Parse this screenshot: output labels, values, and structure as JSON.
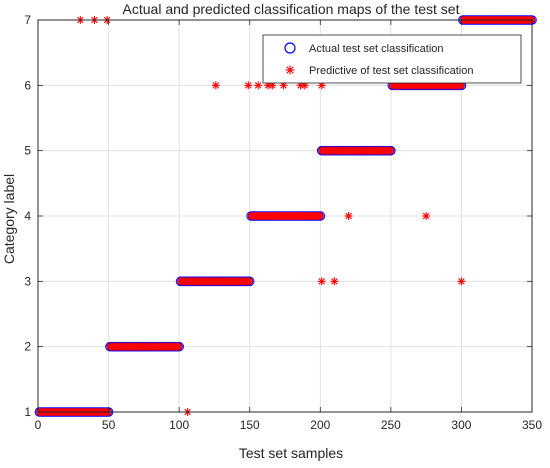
{
  "chart_data": {
    "type": "scatter",
    "title": "Actual and predicted classification maps of the test set",
    "xlabel": "Test set samples",
    "ylabel": "Category label",
    "xlim": [
      0,
      350
    ],
    "ylim": [
      1,
      7
    ],
    "xticks": [
      0,
      50,
      100,
      150,
      200,
      250,
      300,
      350
    ],
    "yticks": [
      1,
      2,
      3,
      4,
      5,
      6,
      7
    ],
    "grid": true,
    "legend_position": "top-right",
    "series": [
      {
        "name": "Actual test set classification",
        "marker": "circle",
        "color": "#0000ff",
        "segments": [
          {
            "x_start": 1,
            "x_end": 50,
            "y": 1
          },
          {
            "x_start": 51,
            "x_end": 100,
            "y": 2
          },
          {
            "x_start": 101,
            "x_end": 150,
            "y": 3
          },
          {
            "x_start": 151,
            "x_end": 200,
            "y": 4
          },
          {
            "x_start": 201,
            "x_end": 250,
            "y": 5
          },
          {
            "x_start": 251,
            "x_end": 300,
            "y": 6
          },
          {
            "x_start": 301,
            "x_end": 350,
            "y": 7
          }
        ]
      },
      {
        "name": "Predictive of test set classification",
        "marker": "asterisk",
        "color": "#ff0000",
        "segments": [
          {
            "x_start": 1,
            "x_end": 50,
            "y": 1
          },
          {
            "x_start": 51,
            "x_end": 100,
            "y": 2
          },
          {
            "x_start": 101,
            "x_end": 150,
            "y": 3
          },
          {
            "x_start": 151,
            "x_end": 200,
            "y": 4
          },
          {
            "x_start": 201,
            "x_end": 250,
            "y": 5
          },
          {
            "x_start": 251,
            "x_end": 300,
            "y": 6
          },
          {
            "x_start": 301,
            "x_end": 350,
            "y": 7
          }
        ],
        "outliers": [
          {
            "x": 30,
            "y": 7
          },
          {
            "x": 40,
            "y": 7
          },
          {
            "x": 49,
            "y": 7
          },
          {
            "x": 106,
            "y": 1
          },
          {
            "x": 126,
            "y": 6
          },
          {
            "x": 149,
            "y": 6
          },
          {
            "x": 156,
            "y": 6
          },
          {
            "x": 163,
            "y": 6
          },
          {
            "x": 166,
            "y": 6
          },
          {
            "x": 174,
            "y": 6
          },
          {
            "x": 186,
            "y": 6
          },
          {
            "x": 189,
            "y": 6
          },
          {
            "x": 201,
            "y": 6
          },
          {
            "x": 201,
            "y": 3
          },
          {
            "x": 210,
            "y": 3
          },
          {
            "x": 220,
            "y": 4
          },
          {
            "x": 275,
            "y": 4
          },
          {
            "x": 300,
            "y": 3
          }
        ]
      }
    ]
  }
}
